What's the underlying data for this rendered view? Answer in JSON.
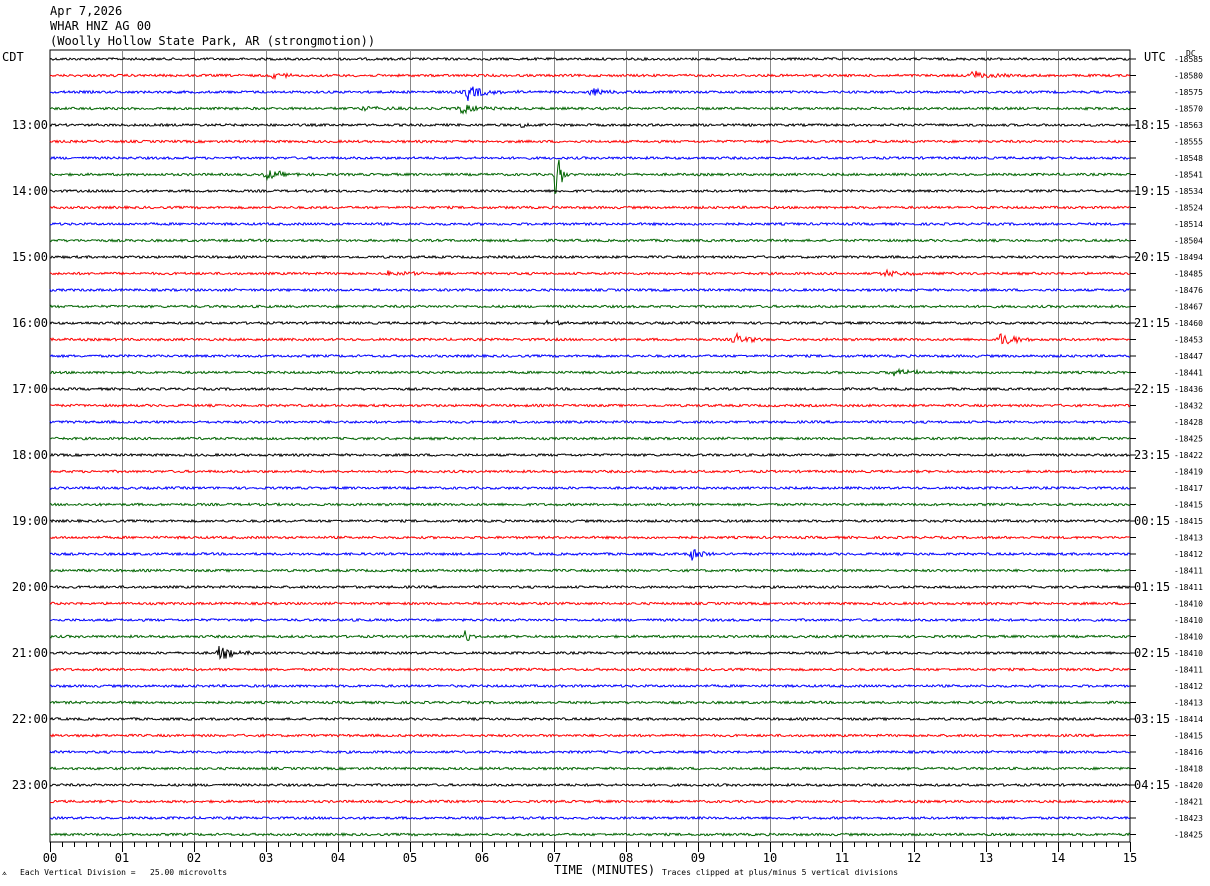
{
  "header": {
    "date": "Apr 7,2026",
    "station": "WHAR HNZ AG 00",
    "location": "(Woolly Hollow State Park, AR (strongmotion))"
  },
  "left_tz": "CDT",
  "right_tz": "UTC",
  "dc_label": "DC",
  "footer": {
    "scale_note": "Each Vertical Division =   25.00 microvolts",
    "clip_note": "Traces clipped at plus/minus 5 vertical divisions"
  },
  "chart_data": {
    "type": "line",
    "title": "",
    "xlabel": "TIME (MINUTES)",
    "x_ticks": [
      "00",
      "01",
      "02",
      "03",
      "04",
      "05",
      "06",
      "07",
      "08",
      "09",
      "10",
      "11",
      "12",
      "13",
      "14",
      "15"
    ],
    "xlim": [
      0,
      15
    ],
    "trace_colors": [
      "#000000",
      "#ff0000",
      "#0000ff",
      "#006400"
    ],
    "left_hour_labels": [
      "13:00",
      "14:00",
      "15:00",
      "16:00",
      "17:00",
      "18:00",
      "19:00",
      "20:00",
      "21:00",
      "22:00",
      "23:00"
    ],
    "right_hour_labels": [
      "18:15",
      "19:15",
      "20:15",
      "21:15",
      "22:15",
      "23:15",
      "00:15",
      "01:15",
      "02:15",
      "03:15",
      "04:15"
    ],
    "dc_offsets": [
      "-18585",
      "-18580",
      "-18575",
      "-18570",
      "-18563",
      "-18555",
      "-18548",
      "-18541",
      "-18534",
      "-18524",
      "-18514",
      "-18504",
      "-18494",
      "-18485",
      "-18476",
      "-18467",
      "-18460",
      "-18453",
      "-18447",
      "-18441",
      "-18436",
      "-18432",
      "-18428",
      "-18425",
      "-18422",
      "-18419",
      "-18417",
      "-18415",
      "-18415",
      "-18413",
      "-18412",
      "-18411",
      "-18411",
      "-18410",
      "-18410",
      "-18410",
      "-18410",
      "-18411",
      "-18412",
      "-18413",
      "-18414",
      "-18415",
      "-18416",
      "-18418",
      "-18420",
      "-18421",
      "-18423",
      "-18425"
    ],
    "events": [
      {
        "trace": 1,
        "minute": 3.1,
        "amp": 0.25,
        "dur": 0.5
      },
      {
        "trace": 1,
        "minute": 12.8,
        "amp": 0.3,
        "dur": 0.6
      },
      {
        "trace": 2,
        "minute": 5.8,
        "amp": 0.55,
        "dur": 0.6
      },
      {
        "trace": 2,
        "minute": 7.5,
        "amp": 0.3,
        "dur": 0.6
      },
      {
        "trace": 3,
        "minute": 5.7,
        "amp": 0.35,
        "dur": 0.6
      },
      {
        "trace": 3,
        "minute": 4.3,
        "amp": 0.12,
        "dur": 0.8
      },
      {
        "trace": 4,
        "minute": 6.55,
        "amp": 0.3,
        "dur": 0.15
      },
      {
        "trace": 7,
        "minute": 3.0,
        "amp": 0.35,
        "dur": 0.5
      },
      {
        "trace": 7,
        "minute": 7.02,
        "amp": 3.3,
        "dur": 0.12
      },
      {
        "trace": 13,
        "minute": 4.7,
        "amp": 0.2,
        "dur": 0.8
      },
      {
        "trace": 13,
        "minute": 11.6,
        "amp": 0.18,
        "dur": 0.8
      },
      {
        "trace": 16,
        "minute": 6.9,
        "amp": 0.15,
        "dur": 0.6
      },
      {
        "trace": 17,
        "minute": 9.5,
        "amp": 0.45,
        "dur": 0.4
      },
      {
        "trace": 17,
        "minute": 13.2,
        "amp": 0.5,
        "dur": 0.5
      },
      {
        "trace": 19,
        "minute": 11.7,
        "amp": 0.4,
        "dur": 0.5
      },
      {
        "trace": 30,
        "minute": 8.9,
        "amp": 0.45,
        "dur": 0.4
      },
      {
        "trace": 35,
        "minute": 5.75,
        "amp": 0.5,
        "dur": 0.15
      },
      {
        "trace": 36,
        "minute": 2.35,
        "amp": 0.45,
        "dur": 0.5
      }
    ]
  }
}
